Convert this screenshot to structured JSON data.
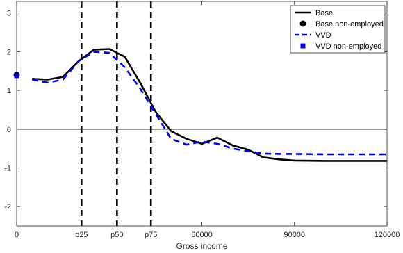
{
  "colors": {
    "base": "#000000",
    "vvd": "#0000ee",
    "axis": "#262626",
    "zero_line": "#000000",
    "vline": "#000000"
  },
  "chart_data": {
    "type": "line",
    "xlabel": "Gross income",
    "ylabel": "",
    "xlim": [
      0,
      120000
    ],
    "ylim": [
      -2.5,
      3.3
    ],
    "grid": false,
    "legend_position": "top-right",
    "x_ticks": [
      {
        "value": 0,
        "label": "0"
      },
      {
        "value": 21000,
        "label": "p25"
      },
      {
        "value": 32500,
        "label": "p50"
      },
      {
        "value": 43500,
        "label": "p75"
      },
      {
        "value": 60000,
        "label": "60000"
      },
      {
        "value": 90000,
        "label": "90000"
      },
      {
        "value": 120000,
        "label": "120000"
      }
    ],
    "y_ticks": [
      {
        "value": 3,
        "label": "3"
      },
      {
        "value": 2,
        "label": "2"
      },
      {
        "value": 1,
        "label": "1"
      },
      {
        "value": 0,
        "label": "0"
      },
      {
        "value": -1,
        "label": "-1"
      },
      {
        "value": -2,
        "label": "-2"
      }
    ],
    "vertical_lines": [
      21000,
      32500,
      43500
    ],
    "horizontal_line": 0,
    "series": [
      {
        "name": "Base",
        "style": "solid",
        "color": "#000000",
        "x": [
          5000,
          10000,
          15000,
          20000,
          25000,
          30000,
          35000,
          40000,
          45000,
          50000,
          55000,
          60000,
          65000,
          70000,
          75000,
          80000,
          85000,
          90000,
          100000,
          110000,
          120000
        ],
        "y": [
          1.3,
          1.28,
          1.35,
          1.75,
          2.05,
          2.07,
          1.87,
          1.2,
          0.45,
          -0.05,
          -0.25,
          -0.38,
          -0.22,
          -0.42,
          -0.53,
          -0.73,
          -0.78,
          -0.81,
          -0.82,
          -0.82,
          -0.82
        ]
      },
      {
        "name": "Base non-employed",
        "style": "marker-circle",
        "color": "#000000",
        "x": [
          0
        ],
        "y": [
          1.4
        ]
      },
      {
        "name": "VVD",
        "style": "dashed",
        "color": "#0000ee",
        "x": [
          5000,
          10000,
          15000,
          20000,
          25000,
          30000,
          35000,
          40000,
          45000,
          50000,
          55000,
          60000,
          65000,
          70000,
          75000,
          80000,
          85000,
          90000,
          100000,
          110000,
          120000
        ],
        "y": [
          1.28,
          1.2,
          1.28,
          1.75,
          2.0,
          1.97,
          1.6,
          1.05,
          0.4,
          -0.25,
          -0.4,
          -0.32,
          -0.38,
          -0.5,
          -0.57,
          -0.63,
          -0.64,
          -0.64,
          -0.65,
          -0.65,
          -0.65
        ]
      },
      {
        "name": "VVD non-employed",
        "style": "marker-square",
        "color": "#0000ee",
        "x": [
          0
        ],
        "y": [
          1.38
        ]
      }
    ]
  }
}
